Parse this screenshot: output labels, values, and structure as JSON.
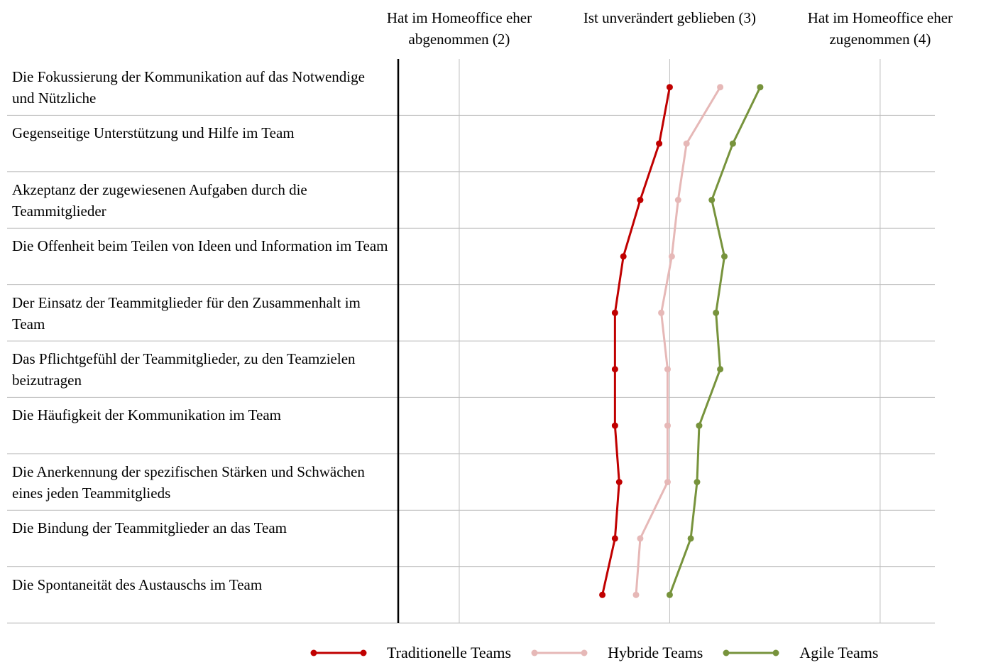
{
  "chart_data": {
    "type": "line",
    "orientation": "horizontal",
    "categories": [
      "Die Fokussierung der Kommunikation auf das Notwendige und Nützliche",
      "Gegenseitige Unterstützung und Hilfe im Team",
      "Akzeptanz der zugewiesenen Aufgaben durch die Teammitglieder",
      "Die Offenheit beim Teilen von Ideen und Information im Team",
      "Der Einsatz der Teammitglieder für den Zusammenhalt im Team",
      "Das Pflichtgefühl der Teammitglieder, zu den Teamzielen beizutragen",
      "Die Häufigkeit der Kommunikation im Team",
      "Die Anerkennung der spezifischen Stärken und Schwächen eines jeden Teammitglieds",
      "Die Bindung der Teammitglieder an das Team",
      "Die Spontaneität des Austauschs im Team"
    ],
    "series": [
      {
        "name": "Traditionelle Teams",
        "color": "#c00000",
        "values": [
          3.0,
          2.95,
          2.86,
          2.78,
          2.74,
          2.74,
          2.74,
          2.76,
          2.74,
          2.68
        ]
      },
      {
        "name": "Hybride Teams",
        "color": "#e6b8b7",
        "values": [
          3.24,
          3.08,
          3.04,
          3.01,
          2.96,
          2.99,
          2.99,
          2.99,
          2.86,
          2.84
        ]
      },
      {
        "name": "Agile Teams",
        "color": "#77933c",
        "values": [
          3.43,
          3.3,
          3.2,
          3.26,
          3.22,
          3.24,
          3.14,
          3.13,
          3.1,
          3.0
        ]
      }
    ],
    "xlim": [
      1.71,
      4.26
    ],
    "xticks": [
      {
        "value": 2,
        "label": "Hat im Homeoffice eher abgenommen (2)"
      },
      {
        "value": 3,
        "label": "Ist unverändert geblieben (3)"
      },
      {
        "value": 4,
        "label": "Hat im Homeoffice eher zugenommen (4)"
      }
    ],
    "grid": true,
    "legend": "bottom"
  }
}
